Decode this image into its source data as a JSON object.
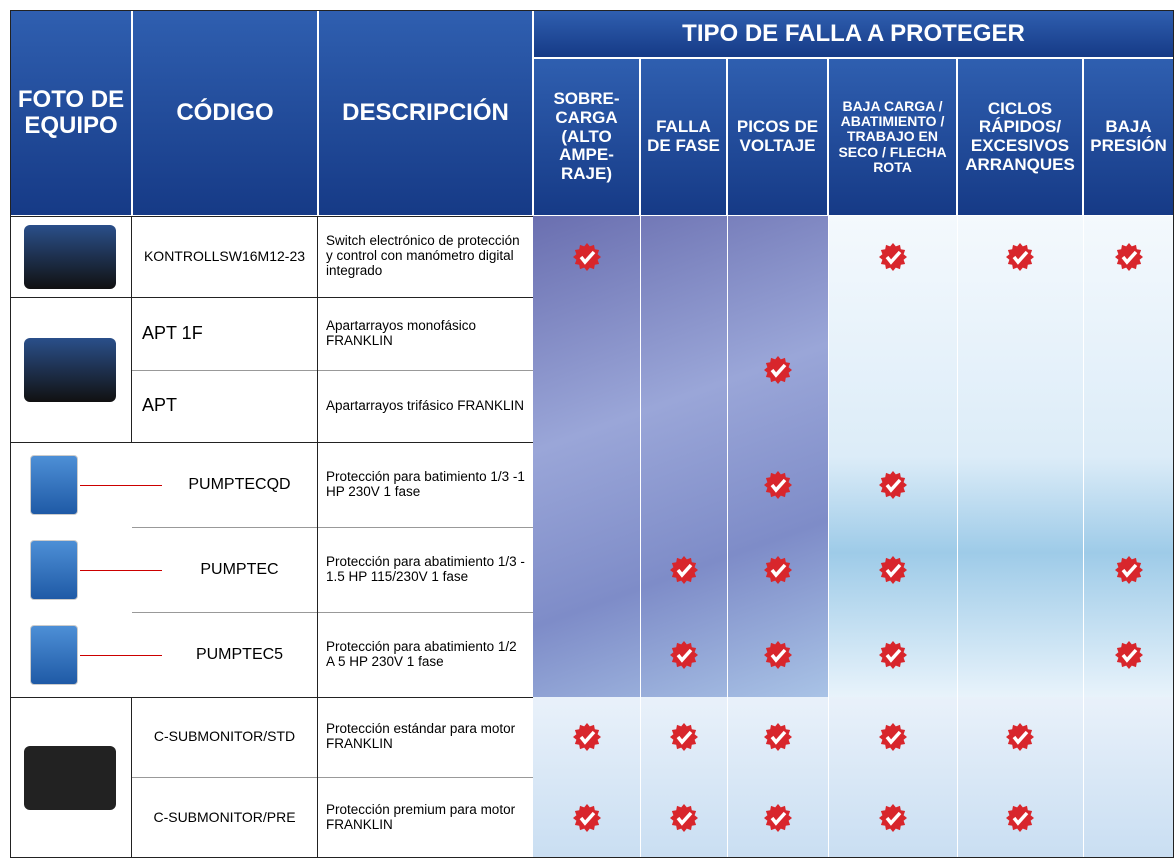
{
  "header": {
    "photo": "FOTO DE EQUIPO",
    "code": "CÓDIGO",
    "description": "DESCRIPCIÓN",
    "faults_title": "TIPO DE FALLA A PROTEGER",
    "faults": [
      "SOBRE-CARGA (ALTO AMPE-RAJE)",
      "FALLA DE FASE",
      "PICOS DE VOLTAJE",
      "BAJA CARGA / ABATIMIENTO / TRABAJO EN SECO / FLECHA ROTA",
      "CICLOS RÁPIDOS/ EXCESIVOS ARRANQUES",
      "BAJA PRESIÓN"
    ]
  },
  "groups": [
    {
      "items": [
        {
          "code": "KONTROLLSW16M12-23",
          "description": "Switch electrónico de protección y control con manómetro digital integrado",
          "checks": [
            true,
            false,
            false,
            true,
            true,
            true
          ]
        }
      ]
    },
    {
      "checks": [
        false,
        false,
        true,
        false,
        false,
        false
      ],
      "items": [
        {
          "code": "APT 1F",
          "description": "Apartarrayos monofásico FRANKLIN"
        },
        {
          "code": "APT",
          "description": "Apartarrayos trifásico FRANKLIN"
        }
      ]
    },
    {
      "items": [
        {
          "code": "PUMPTECQD",
          "description": "Protección para batimiento 1/3 -1 HP 230V 1 fase",
          "checks": [
            false,
            false,
            true,
            true,
            false,
            false
          ]
        },
        {
          "code": "PUMPTEC",
          "description": "Protección para abatimiento 1/3 - 1.5 HP 115/230V 1 fase",
          "checks": [
            false,
            true,
            true,
            true,
            false,
            true
          ]
        },
        {
          "code": "PUMPTEC5",
          "description": "Protección para abatimiento 1/2 A  5 HP 230V 1 fase",
          "checks": [
            false,
            true,
            true,
            true,
            false,
            true
          ]
        }
      ]
    },
    {
      "items": [
        {
          "code": "C-SUBMONITOR/STD",
          "description": "Protección estándar para motor FRANKLIN",
          "checks": [
            true,
            true,
            true,
            true,
            true,
            false
          ]
        },
        {
          "code": "C-SUBMONITOR/PRE",
          "description": "Protección premium para motor FRANKLIN",
          "checks": [
            true,
            true,
            true,
            true,
            true,
            false
          ]
        }
      ]
    }
  ]
}
